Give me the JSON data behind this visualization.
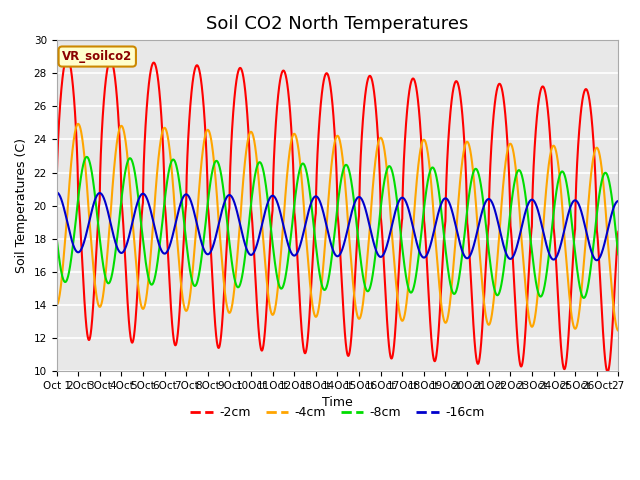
{
  "title": "Soil CO2 North Temperatures",
  "xlabel": "Time",
  "ylabel": "Soil Temperatures (C)",
  "annotation": "VR_soilco2",
  "ylim": [
    10,
    30
  ],
  "x_start": 1,
  "x_end": 27,
  "x_ticks": [
    1,
    2,
    3,
    4,
    5,
    6,
    7,
    8,
    9,
    10,
    11,
    12,
    13,
    14,
    15,
    16,
    17,
    18,
    19,
    20,
    21,
    22,
    23,
    24,
    25,
    26,
    27
  ],
  "x_tick_labels": [
    "Oct 1",
    "2Oct",
    "3Oct",
    "4Oct",
    "5Oct",
    "6Oct",
    "7Oct",
    "8Oct",
    "9Oct",
    "10Oct",
    "11Oct",
    "12Oct",
    "13Oct",
    "14Oct",
    "15Oct",
    "16Oct",
    "17Oct",
    "18Oct",
    "19Oct",
    "20Oct",
    "21Oct",
    "22Oct",
    "23Oct",
    "24Oct",
    "25Oct",
    "26Oct",
    "27"
  ],
  "series": [
    {
      "label": "-2cm",
      "color": "#ff0000",
      "amplitude": 8.5,
      "mean": 20.5,
      "phase_shift": 0.0,
      "period": 2.0,
      "asymmetry": 0.4,
      "trend_slope": -0.08
    },
    {
      "label": "-4cm",
      "color": "#ffa500",
      "amplitude": 5.5,
      "mean": 19.5,
      "phase_shift": 0.25,
      "period": 2.0,
      "asymmetry": 0.1,
      "trend_slope": -0.06
    },
    {
      "label": "-8cm",
      "color": "#00dd00",
      "amplitude": 3.8,
      "mean": 19.2,
      "phase_shift": 0.45,
      "period": 2.0,
      "asymmetry": 0.05,
      "trend_slope": -0.04
    },
    {
      "label": "-16cm",
      "color": "#0000cc",
      "amplitude": 1.8,
      "mean": 19.0,
      "phase_shift": 0.75,
      "period": 2.0,
      "asymmetry": 0.0,
      "trend_slope": -0.02
    }
  ],
  "background_color": "#e8e8e8",
  "plot_bg_color": "#e8e8e8",
  "grid_color": "#ffffff",
  "linewidth": 1.5,
  "title_fontsize": 13,
  "label_fontsize": 9,
  "tick_fontsize": 7.5,
  "legend_fontsize": 9
}
